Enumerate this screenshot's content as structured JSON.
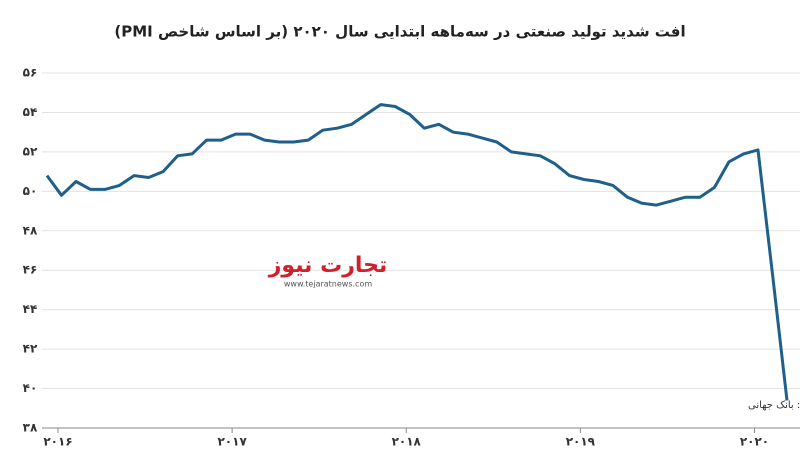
{
  "chart_data": {
    "type": "line",
    "title": "افت شدید تولید صنعتی در سه‌ماهه ابتدایی سال ۲۰۲۰ (بر اساس شاخص PMI)",
    "source": "منبع: بانک جهانی",
    "watermark": "تجارت نیوز",
    "watermark_url": "www.tejaratnews.com",
    "categories": [
      "۲۰۱۶",
      null,
      null,
      null,
      null,
      null,
      null,
      null,
      null,
      null,
      null,
      null,
      "۲۰۱۷",
      null,
      null,
      null,
      null,
      null,
      null,
      null,
      null,
      null,
      null,
      null,
      "۲۰۱۸",
      null,
      null,
      null,
      null,
      null,
      null,
      null,
      null,
      null,
      null,
      null,
      "۲۰۱۹",
      null,
      null,
      null,
      null,
      null,
      null,
      null,
      null,
      null,
      null,
      null,
      "۲۰۲۰",
      null,
      null,
      null
    ],
    "values": [
      50.8,
      49.8,
      50.5,
      50.1,
      50.1,
      50.3,
      50.8,
      50.7,
      51.0,
      51.8,
      51.9,
      52.6,
      52.6,
      52.9,
      52.9,
      52.6,
      52.5,
      52.5,
      52.6,
      53.1,
      53.2,
      53.4,
      53.9,
      54.4,
      54.3,
      53.9,
      53.2,
      53.4,
      53.0,
      52.9,
      52.7,
      52.5,
      52.0,
      51.9,
      51.8,
      51.4,
      50.8,
      50.6,
      50.5,
      50.3,
      49.7,
      49.4,
      49.3,
      49.5,
      49.7,
      49.7,
      50.2,
      51.5,
      51.9,
      52.1,
      45.8,
      39.4
    ],
    "color": "#1f5f8b",
    "ylim": [
      38,
      56
    ],
    "yticks": [
      {
        "value": 38,
        "label": "۳۸"
      },
      {
        "value": 40,
        "label": "۴۰"
      },
      {
        "value": 42,
        "label": "۴۲"
      },
      {
        "value": 44,
        "label": "۴۴"
      },
      {
        "value": 46,
        "label": "۴۶"
      },
      {
        "value": 48,
        "label": "۴۸"
      },
      {
        "value": 50,
        "label": "۵۰"
      },
      {
        "value": 52,
        "label": "۵۲"
      },
      {
        "value": 54,
        "label": "۵۴"
      },
      {
        "value": 56,
        "label": "۵۶"
      }
    ],
    "grid": true
  }
}
